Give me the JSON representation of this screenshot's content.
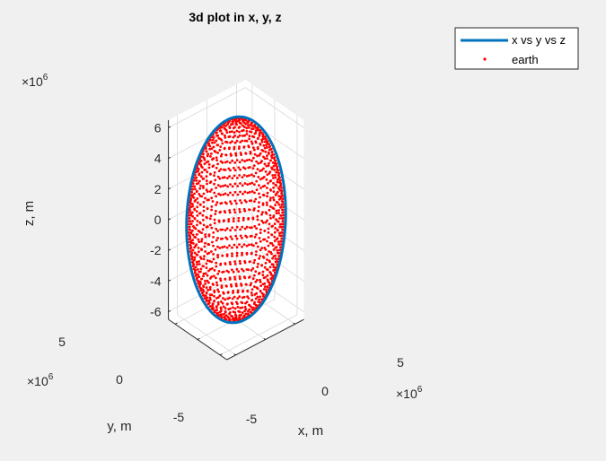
{
  "chart_data": {
    "type": "scatter3d",
    "title": "3d plot in x, y, z",
    "xlabel": "x, m",
    "ylabel": "y, m",
    "zlabel": "z, m",
    "multiplier_label": "×10",
    "multiplier_exponent": "6",
    "x_ticks": [
      "-5",
      "0",
      "5"
    ],
    "y_ticks": [
      "-5",
      "0",
      "5"
    ],
    "z_ticks": [
      "-6",
      "-4",
      "-2",
      "0",
      "2",
      "4",
      "6"
    ],
    "z_tick_values": [
      -6,
      -4,
      -2,
      0,
      2,
      4,
      6
    ],
    "axis_range_millions": {
      "x": [
        -6.5,
        6.5
      ],
      "y": [
        -6.5,
        6.5
      ],
      "z": [
        -6.5,
        6.5
      ]
    },
    "grid": true,
    "legend_position": "top-right outside",
    "series": [
      {
        "name": "x vs y vs z",
        "style": "line",
        "color": "#0072bd",
        "description_values": {
          "radius_millions": 6.7,
          "inclination_deg": 90
        }
      },
      {
        "name": "earth",
        "style": "points",
        "color": "#ff0000",
        "description_values": {
          "radius_millions": 6.378
        }
      }
    ]
  },
  "colors": {
    "background": "#f0f0f0",
    "axes_face": "#ffffff",
    "grid": "#dfdfdf",
    "axis": "#262626"
  }
}
